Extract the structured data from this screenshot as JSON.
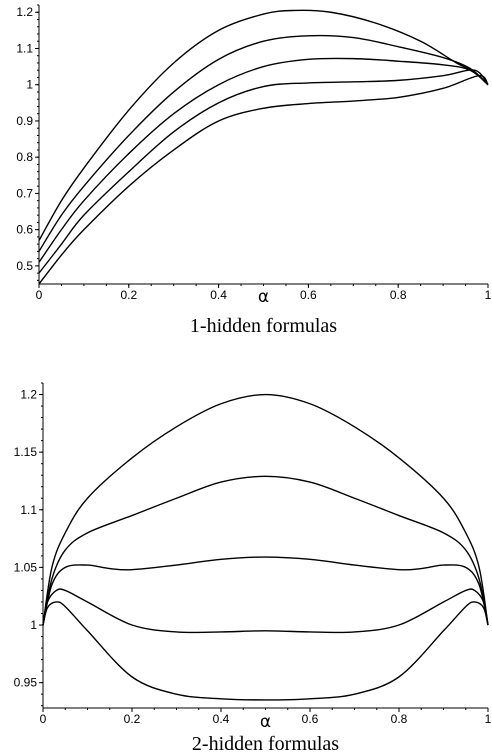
{
  "chart_data": [
    {
      "type": "line",
      "title": "",
      "caption": "1-hidden formulas",
      "xlabel": "α",
      "ylabel": "",
      "xlim": [
        0,
        1
      ],
      "ylim": [
        0.45,
        1.22
      ],
      "xticks": [
        0,
        0.2,
        0.4,
        0.6,
        0.8,
        1
      ],
      "xtick_labels": [
        "0",
        "0.2",
        "0.4",
        "0.6",
        "0.8",
        "1"
      ],
      "yticks": [
        0.5,
        0.6,
        0.7,
        0.8,
        0.9,
        1,
        1.1,
        1.2
      ],
      "ytick_labels": [
        "0.5",
        "0.6",
        "0.7",
        "0.8",
        "0.9",
        "1",
        "1.1",
        "1.2"
      ],
      "grid": false,
      "series": [
        {
          "x": [
            0,
            0.05,
            0.1,
            0.2,
            0.3,
            0.4,
            0.5,
            0.57,
            0.65,
            0.75,
            0.85,
            0.93,
            0.97,
            1
          ],
          "values": [
            0.57,
            0.68,
            0.77,
            0.93,
            1.06,
            1.15,
            1.195,
            1.205,
            1.2,
            1.17,
            1.12,
            1.06,
            1.035,
            1.0
          ]
        },
        {
          "x": [
            0,
            0.05,
            0.1,
            0.2,
            0.3,
            0.4,
            0.5,
            0.6,
            0.7,
            0.8,
            0.9,
            0.96,
            1
          ],
          "values": [
            0.54,
            0.64,
            0.72,
            0.86,
            0.98,
            1.07,
            1.12,
            1.135,
            1.13,
            1.105,
            1.075,
            1.045,
            1.0
          ]
        },
        {
          "x": [
            0,
            0.05,
            0.1,
            0.2,
            0.3,
            0.4,
            0.5,
            0.6,
            0.7,
            0.8,
            0.9,
            0.96,
            1
          ],
          "values": [
            0.51,
            0.6,
            0.68,
            0.81,
            0.92,
            1.0,
            1.05,
            1.07,
            1.072,
            1.065,
            1.055,
            1.04,
            1.0
          ]
        },
        {
          "x": [
            0,
            0.05,
            0.1,
            0.2,
            0.3,
            0.4,
            0.5,
            0.6,
            0.7,
            0.8,
            0.9,
            0.97,
            1
          ],
          "values": [
            0.48,
            0.56,
            0.64,
            0.76,
            0.87,
            0.95,
            0.995,
            1.005,
            1.008,
            1.012,
            1.025,
            1.04,
            1.0
          ]
        },
        {
          "x": [
            0,
            0.05,
            0.1,
            0.2,
            0.3,
            0.4,
            0.5,
            0.6,
            0.7,
            0.8,
            0.9,
            0.98,
            1
          ],
          "values": [
            0.45,
            0.53,
            0.6,
            0.72,
            0.82,
            0.9,
            0.935,
            0.948,
            0.955,
            0.965,
            0.99,
            1.025,
            1.0
          ]
        }
      ]
    },
    {
      "type": "line",
      "title": "",
      "caption": "2-hidden formulas",
      "xlabel": "α",
      "ylabel": "",
      "xlim": [
        0,
        1
      ],
      "ylim": [
        0.928,
        1.21
      ],
      "xticks": [
        0,
        0.2,
        0.4,
        0.6,
        0.8,
        1
      ],
      "xtick_labels": [
        "0",
        "0.2",
        "0.4",
        "0.6",
        "0.8",
        "1"
      ],
      "yticks": [
        0.95,
        1,
        1.05,
        1.1,
        1.15,
        1.2
      ],
      "ytick_labels": [
        "0.95",
        "1",
        "1.05",
        "1.1",
        "1.15",
        "1.2"
      ],
      "grid": false,
      "series": [
        {
          "x": [
            0,
            0.02,
            0.05,
            0.1,
            0.2,
            0.3,
            0.4,
            0.5,
            0.6,
            0.7,
            0.8,
            0.9,
            0.95,
            0.98,
            1
          ],
          "values": [
            1.0,
            1.05,
            1.08,
            1.11,
            1.145,
            1.172,
            1.192,
            1.2,
            1.192,
            1.172,
            1.145,
            1.11,
            1.08,
            1.05,
            1.0
          ]
        },
        {
          "x": [
            0,
            0.02,
            0.05,
            0.1,
            0.2,
            0.3,
            0.4,
            0.5,
            0.6,
            0.7,
            0.8,
            0.9,
            0.95,
            0.98,
            1
          ],
          "values": [
            1.0,
            1.04,
            1.065,
            1.08,
            1.095,
            1.11,
            1.124,
            1.129,
            1.124,
            1.11,
            1.095,
            1.08,
            1.065,
            1.04,
            1.0
          ]
        },
        {
          "x": [
            0,
            0.02,
            0.05,
            0.1,
            0.15,
            0.2,
            0.3,
            0.4,
            0.5,
            0.6,
            0.7,
            0.8,
            0.85,
            0.9,
            0.95,
            0.98,
            1
          ],
          "values": [
            1.0,
            1.035,
            1.05,
            1.052,
            1.049,
            1.048,
            1.052,
            1.057,
            1.059,
            1.057,
            1.052,
            1.048,
            1.049,
            1.052,
            1.05,
            1.035,
            1.0
          ]
        },
        {
          "x": [
            0,
            0.01,
            0.03,
            0.05,
            0.1,
            0.2,
            0.3,
            0.4,
            0.5,
            0.6,
            0.7,
            0.8,
            0.9,
            0.95,
            0.97,
            0.99,
            1
          ],
          "values": [
            1.0,
            1.02,
            1.03,
            1.03,
            1.02,
            1.0,
            0.994,
            0.994,
            0.995,
            0.994,
            0.994,
            1.0,
            1.02,
            1.03,
            1.03,
            1.02,
            1.0
          ]
        },
        {
          "x": [
            0,
            0.01,
            0.03,
            0.05,
            0.1,
            0.2,
            0.3,
            0.4,
            0.5,
            0.6,
            0.7,
            0.8,
            0.9,
            0.95,
            0.97,
            0.99,
            1
          ],
          "values": [
            1.0,
            1.015,
            1.02,
            1.016,
            0.995,
            0.955,
            0.94,
            0.936,
            0.935,
            0.936,
            0.94,
            0.955,
            0.995,
            1.016,
            1.02,
            1.015,
            1.0
          ]
        }
      ]
    }
  ]
}
